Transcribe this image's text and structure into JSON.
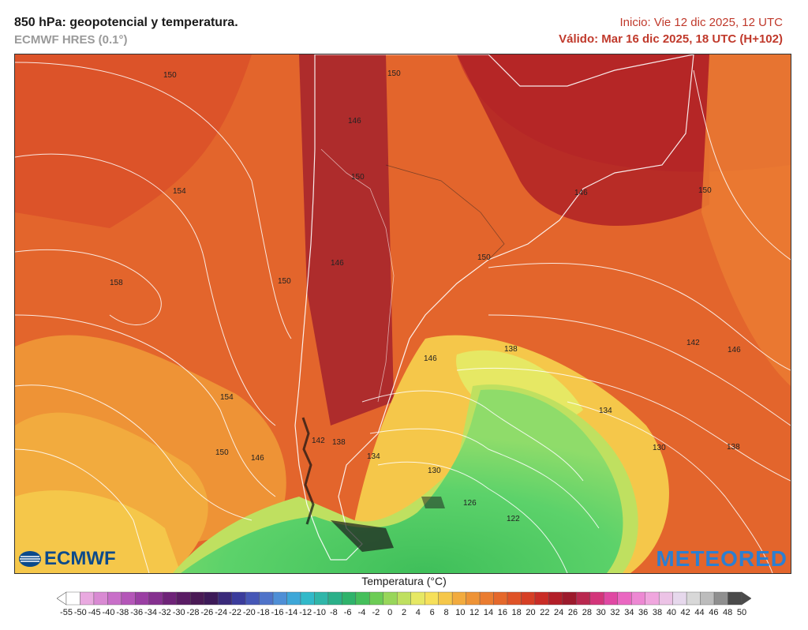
{
  "header": {
    "title": "850 hPa: geopotencial y temperatura.",
    "model": "ECMWF HRES (0.1°)",
    "init": "Inicio: Vie 12 dic 2025, 12 UTC",
    "valid": "Válido: Mar 16 dic 2025, 18 UTC (H+102)"
  },
  "logos": {
    "left": "ECMWF",
    "right": "METEORED"
  },
  "contour_labels": [
    "150",
    "150",
    "146",
    "154",
    "150",
    "146",
    "150",
    "150",
    "146",
    "158",
    "150",
    "142",
    "146",
    "138",
    "146",
    "154",
    "142",
    "138",
    "134",
    "134",
    "150",
    "146",
    "130",
    "130",
    "138",
    "126",
    "122"
  ],
  "colorbar": {
    "title": "Temperatura (°C)",
    "ticks": [
      "-55",
      "-50",
      "-45",
      "-40",
      "-38",
      "-36",
      "-34",
      "-32",
      "-30",
      "-28",
      "-26",
      "-24",
      "-22",
      "-20",
      "-18",
      "-16",
      "-14",
      "-12",
      "-10",
      "-8",
      "-6",
      "-4",
      "-2",
      "0",
      "2",
      "4",
      "6",
      "8",
      "10",
      "12",
      "14",
      "16",
      "18",
      "20",
      "22",
      "24",
      "26",
      "28",
      "30",
      "32",
      "34",
      "36",
      "38",
      "40",
      "42",
      "44",
      "46",
      "48",
      "50"
    ],
    "colors": [
      "#ffffff",
      "#e9a9e0",
      "#d98ad3",
      "#c86fc8",
      "#b456b8",
      "#9a3fa3",
      "#85308f",
      "#6e2378",
      "#5a1c64",
      "#4a1a55",
      "#3d1a58",
      "#3a2a7a",
      "#3b3c9c",
      "#4657b6",
      "#4f73c9",
      "#4f8fd6",
      "#3ea7d8",
      "#31b9c9",
      "#2fb6a9",
      "#2bb089",
      "#2fb36b",
      "#45bf5b",
      "#6ccc55",
      "#98d65a",
      "#bfe060",
      "#e6e864",
      "#f6e05a",
      "#f5c74a",
      "#f2ab3e",
      "#ee9336",
      "#ea7c30",
      "#e5682b",
      "#df5327",
      "#d63f25",
      "#c92c26",
      "#b31e28",
      "#9c1a2c",
      "#b9284f",
      "#d3357a",
      "#e048a3",
      "#ea67c1",
      "#ed88d3",
      "#f0a6de",
      "#ecc3e6",
      "#e6d8ec",
      "#d8d8d8",
      "#bcbcbc",
      "#8f8f8f",
      "#4a4a4a"
    ]
  }
}
